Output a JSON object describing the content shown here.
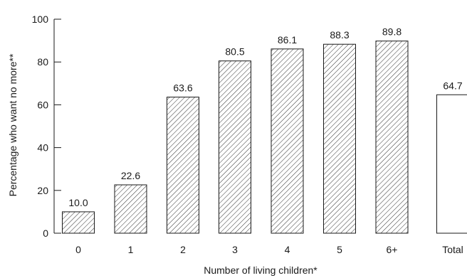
{
  "chart_data": {
    "type": "bar",
    "categories": [
      "0",
      "1",
      "2",
      "3",
      "4",
      "5",
      "6+",
      "Total"
    ],
    "values": [
      10.0,
      22.6,
      63.6,
      80.5,
      86.1,
      88.3,
      89.8,
      64.7
    ],
    "value_labels": [
      "10.0",
      "22.6",
      "63.6",
      "80.5",
      "86.1",
      "88.3",
      "89.8",
      "64.7"
    ],
    "bar_fill": [
      "hatched",
      "hatched",
      "hatched",
      "hatched",
      "hatched",
      "hatched",
      "hatched",
      "plain"
    ],
    "xlabel": "Number of living children*",
    "ylabel": "Percentage who want no more**",
    "ylim": [
      0,
      100
    ],
    "yticks": [
      0,
      20,
      40,
      60,
      80,
      100
    ],
    "grid": false,
    "legend": false,
    "colors": {
      "bar_stroke": "#1a1a1a",
      "hatch": "#1a1a1a",
      "background": "#ffffff",
      "axis": "#1a1a1a"
    }
  }
}
